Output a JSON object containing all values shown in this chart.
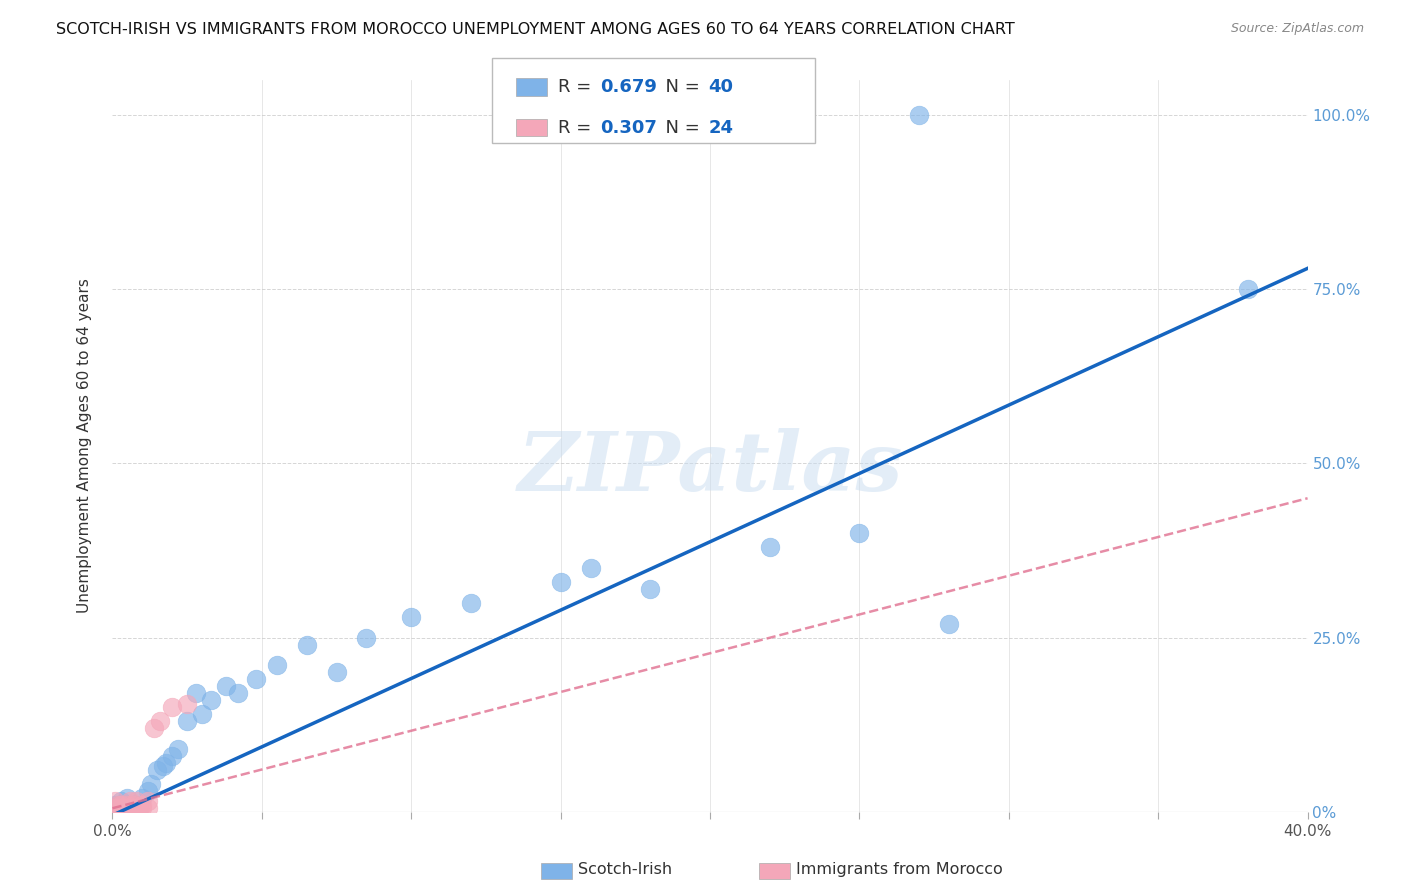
{
  "title": "SCOTCH-IRISH VS IMMIGRANTS FROM MOROCCO UNEMPLOYMENT AMONG AGES 60 TO 64 YEARS CORRELATION CHART",
  "source": "Source: ZipAtlas.com",
  "ylabel": "Unemployment Among Ages 60 to 64 years",
  "xlim": [
    0.0,
    0.4
  ],
  "ylim": [
    0.0,
    1.05
  ],
  "xtick_positions": [
    0.0,
    0.05,
    0.1,
    0.15,
    0.2,
    0.25,
    0.3,
    0.35,
    0.4
  ],
  "xtick_show_labels": [
    0.0,
    0.4
  ],
  "ytick_values": [
    0.0,
    0.25,
    0.5,
    0.75,
    1.0
  ],
  "ytick_labels_right": [
    "0%",
    "25.0%",
    "50.0%",
    "75.0%",
    "100.0%"
  ],
  "scotch_irish_color": "#7FB3E8",
  "morocco_color": "#F4A7B9",
  "scotch_irish_line_color": "#1565C0",
  "morocco_line_color": "#E07090",
  "legend_R_color": "#1565C0",
  "scotch_R": 0.679,
  "scotch_N": 40,
  "morocco_R": 0.307,
  "morocco_N": 24,
  "scotch_irish_x": [
    0.001,
    0.001,
    0.002,
    0.003,
    0.003,
    0.004,
    0.005,
    0.005,
    0.006,
    0.007,
    0.008,
    0.009,
    0.01,
    0.012,
    0.013,
    0.015,
    0.017,
    0.018,
    0.02,
    0.022,
    0.025,
    0.028,
    0.03,
    0.033,
    0.038,
    0.042,
    0.048,
    0.055,
    0.065,
    0.075,
    0.085,
    0.1,
    0.12,
    0.15,
    0.16,
    0.18,
    0.22,
    0.25,
    0.28,
    0.38
  ],
  "scotch_irish_y": [
    0.005,
    0.01,
    0.01,
    0.005,
    0.015,
    0.005,
    0.01,
    0.02,
    0.005,
    0.01,
    0.01,
    0.005,
    0.02,
    0.03,
    0.04,
    0.06,
    0.065,
    0.07,
    0.08,
    0.09,
    0.13,
    0.17,
    0.14,
    0.16,
    0.18,
    0.17,
    0.19,
    0.21,
    0.24,
    0.2,
    0.25,
    0.28,
    0.3,
    0.33,
    0.35,
    0.32,
    0.38,
    0.4,
    0.27,
    0.75
  ],
  "morocco_x": [
    0.001,
    0.001,
    0.002,
    0.002,
    0.003,
    0.003,
    0.004,
    0.005,
    0.005,
    0.006,
    0.006,
    0.007,
    0.007,
    0.008,
    0.008,
    0.009,
    0.01,
    0.01,
    0.012,
    0.012,
    0.014,
    0.016,
    0.02,
    0.025
  ],
  "morocco_y": [
    0.005,
    0.015,
    0.005,
    0.01,
    0.005,
    0.01,
    0.005,
    0.01,
    0.005,
    0.005,
    0.015,
    0.005,
    0.01,
    0.005,
    0.015,
    0.005,
    0.01,
    0.005,
    0.005,
    0.015,
    0.12,
    0.13,
    0.15,
    0.155
  ],
  "si_line_x0": 0.0,
  "si_line_y0": -0.005,
  "si_line_x1": 0.4,
  "si_line_y1": 0.78,
  "mo_line_x0": 0.0,
  "mo_line_y0": 0.005,
  "mo_line_x1": 0.4,
  "mo_line_y1": 0.45
}
